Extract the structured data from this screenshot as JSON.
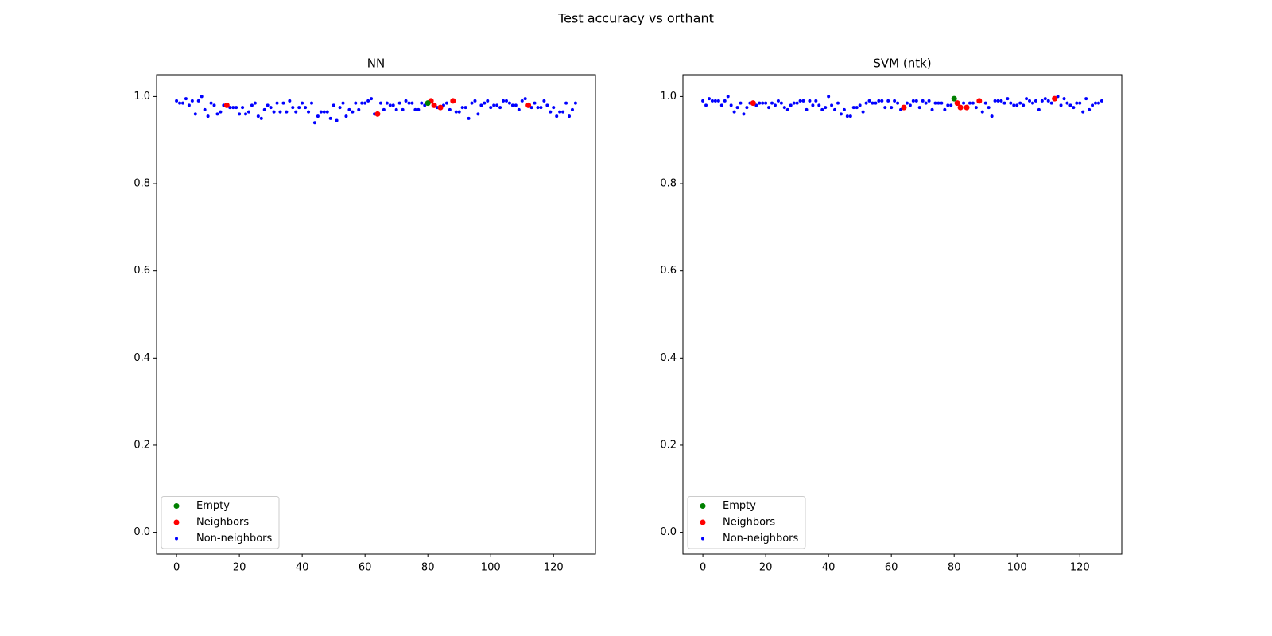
{
  "title": "Test accuracy vs orthant",
  "chart_data": [
    {
      "type": "scatter",
      "title": "NN",
      "legend": "lower left",
      "xlim": [
        -6.35,
        133.35
      ],
      "ylim": [
        -0.05,
        1.05
      ],
      "xticks": [
        0,
        20,
        40,
        60,
        80,
        100,
        120
      ],
      "yticks": [
        {
          "value": 0,
          "label": "0.0"
        },
        0.2,
        0.4,
        0.6,
        0.8,
        {
          "value": 1,
          "label": "1.0"
        }
      ],
      "series": [
        {
          "name": "Empty",
          "color": "#008000",
          "size": "large",
          "x": [
            80
          ],
          "values": [
            0.985
          ]
        },
        {
          "name": "Neighbors",
          "color": "#ff0000",
          "size": "large",
          "x": [
            16,
            64,
            81,
            82,
            84,
            88,
            112
          ],
          "values": [
            0.98,
            0.96,
            0.99,
            0.98,
            0.975,
            0.99,
            0.98
          ]
        },
        {
          "name": "Non-neighbors",
          "color": "#0000ff",
          "size": "small",
          "x": [
            0,
            1,
            2,
            3,
            4,
            5,
            6,
            7,
            8,
            9,
            10,
            11,
            12,
            13,
            14,
            15,
            17,
            18,
            19,
            20,
            21,
            22,
            23,
            24,
            25,
            26,
            27,
            28,
            29,
            30,
            31,
            32,
            33,
            34,
            35,
            36,
            37,
            38,
            39,
            40,
            41,
            42,
            43,
            44,
            45,
            46,
            47,
            48,
            49,
            50,
            51,
            52,
            53,
            54,
            55,
            56,
            57,
            58,
            59,
            60,
            61,
            62,
            63,
            65,
            66,
            67,
            68,
            69,
            70,
            71,
            72,
            73,
            74,
            75,
            76,
            77,
            78,
            79,
            83,
            85,
            86,
            87,
            89,
            90,
            91,
            92,
            93,
            94,
            95,
            96,
            97,
            98,
            99,
            100,
            101,
            102,
            103,
            104,
            105,
            106,
            107,
            108,
            109,
            110,
            111,
            113,
            114,
            115,
            116,
            117,
            118,
            119,
            120,
            121,
            122,
            123,
            124,
            125,
            126,
            127
          ],
          "values": [
            0.99,
            0.985,
            0.985,
            0.995,
            0.98,
            0.99,
            0.96,
            0.99,
            1.0,
            0.97,
            0.955,
            0.985,
            0.98,
            0.96,
            0.965,
            0.98,
            0.975,
            0.975,
            0.975,
            0.96,
            0.975,
            0.96,
            0.965,
            0.98,
            0.985,
            0.955,
            0.95,
            0.97,
            0.98,
            0.975,
            0.965,
            0.985,
            0.965,
            0.985,
            0.965,
            0.99,
            0.975,
            0.965,
            0.975,
            0.985,
            0.975,
            0.965,
            0.985,
            0.94,
            0.955,
            0.965,
            0.965,
            0.965,
            0.95,
            0.98,
            0.945,
            0.975,
            0.985,
            0.955,
            0.97,
            0.965,
            0.985,
            0.97,
            0.985,
            0.985,
            0.99,
            0.995,
            0.96,
            0.985,
            0.97,
            0.985,
            0.98,
            0.98,
            0.97,
            0.985,
            0.97,
            0.99,
            0.985,
            0.985,
            0.97,
            0.97,
            0.985,
            0.98,
            0.975,
            0.98,
            0.985,
            0.97,
            0.965,
            0.965,
            0.975,
            0.975,
            0.95,
            0.985,
            0.99,
            0.96,
            0.98,
            0.985,
            0.99,
            0.975,
            0.98,
            0.98,
            0.975,
            0.99,
            0.99,
            0.985,
            0.98,
            0.98,
            0.97,
            0.99,
            0.995,
            0.975,
            0.985,
            0.975,
            0.975,
            0.99,
            0.98,
            0.965,
            0.975,
            0.955,
            0.965,
            0.965,
            0.985,
            0.955,
            0.97,
            0.985
          ]
        }
      ]
    },
    {
      "type": "scatter",
      "title": "SVM (ntk)",
      "legend": "lower left",
      "xlim": [
        -6.35,
        133.35
      ],
      "ylim": [
        -0.05,
        1.05
      ],
      "xticks": [
        0,
        20,
        40,
        60,
        80,
        100,
        120
      ],
      "yticks": [
        {
          "value": 0,
          "label": "0.0"
        },
        0.2,
        0.4,
        0.6,
        0.8,
        {
          "value": 1,
          "label": "1.0"
        }
      ],
      "series": [
        {
          "name": "Empty",
          "color": "#008000",
          "size": "large",
          "x": [
            80
          ],
          "values": [
            0.995
          ]
        },
        {
          "name": "Neighbors",
          "color": "#ff0000",
          "size": "large",
          "x": [
            16,
            64,
            81,
            82,
            84,
            88,
            112
          ],
          "values": [
            0.985,
            0.975,
            0.985,
            0.975,
            0.975,
            0.99,
            0.995
          ]
        },
        {
          "name": "Non-neighbors",
          "color": "#0000ff",
          "size": "small",
          "x": [
            0,
            1,
            2,
            3,
            4,
            5,
            6,
            7,
            8,
            9,
            10,
            11,
            12,
            13,
            14,
            15,
            17,
            18,
            19,
            20,
            21,
            22,
            23,
            24,
            25,
            26,
            27,
            28,
            29,
            30,
            31,
            32,
            33,
            34,
            35,
            36,
            37,
            38,
            39,
            40,
            41,
            42,
            43,
            44,
            45,
            46,
            47,
            48,
            49,
            50,
            51,
            52,
            53,
            54,
            55,
            56,
            57,
            58,
            59,
            60,
            61,
            62,
            63,
            65,
            66,
            67,
            68,
            69,
            70,
            71,
            72,
            73,
            74,
            75,
            76,
            77,
            78,
            79,
            83,
            85,
            86,
            87,
            89,
            90,
            91,
            92,
            93,
            94,
            95,
            96,
            97,
            98,
            99,
            100,
            101,
            102,
            103,
            104,
            105,
            106,
            107,
            108,
            109,
            110,
            111,
            113,
            114,
            115,
            116,
            117,
            118,
            119,
            120,
            121,
            122,
            123,
            124,
            125,
            126,
            127
          ],
          "values": [
            0.99,
            0.98,
            0.995,
            0.99,
            0.99,
            0.99,
            0.98,
            0.99,
            1.0,
            0.98,
            0.965,
            0.975,
            0.985,
            0.96,
            0.975,
            0.985,
            0.98,
            0.985,
            0.985,
            0.985,
            0.975,
            0.985,
            0.98,
            0.99,
            0.985,
            0.975,
            0.97,
            0.98,
            0.985,
            0.985,
            0.99,
            0.99,
            0.97,
            0.99,
            0.98,
            0.99,
            0.98,
            0.97,
            0.975,
            1.0,
            0.98,
            0.97,
            0.985,
            0.96,
            0.97,
            0.955,
            0.955,
            0.975,
            0.975,
            0.98,
            0.965,
            0.985,
            0.99,
            0.985,
            0.985,
            0.99,
            0.99,
            0.975,
            0.99,
            0.975,
            0.99,
            0.985,
            0.97,
            0.985,
            0.98,
            0.99,
            0.99,
            0.975,
            0.99,
            0.985,
            0.99,
            0.97,
            0.985,
            0.985,
            0.985,
            0.97,
            0.98,
            0.98,
            0.985,
            0.985,
            0.985,
            0.975,
            0.965,
            0.985,
            0.975,
            0.955,
            0.99,
            0.99,
            0.99,
            0.985,
            0.995,
            0.985,
            0.98,
            0.98,
            0.985,
            0.98,
            0.995,
            0.99,
            0.985,
            0.99,
            0.97,
            0.99,
            0.995,
            0.99,
            0.985,
            1.0,
            0.98,
            0.995,
            0.985,
            0.98,
            0.975,
            0.985,
            0.985,
            0.965,
            0.995,
            0.97,
            0.98,
            0.985,
            0.985,
            0.99
          ]
        }
      ]
    }
  ]
}
